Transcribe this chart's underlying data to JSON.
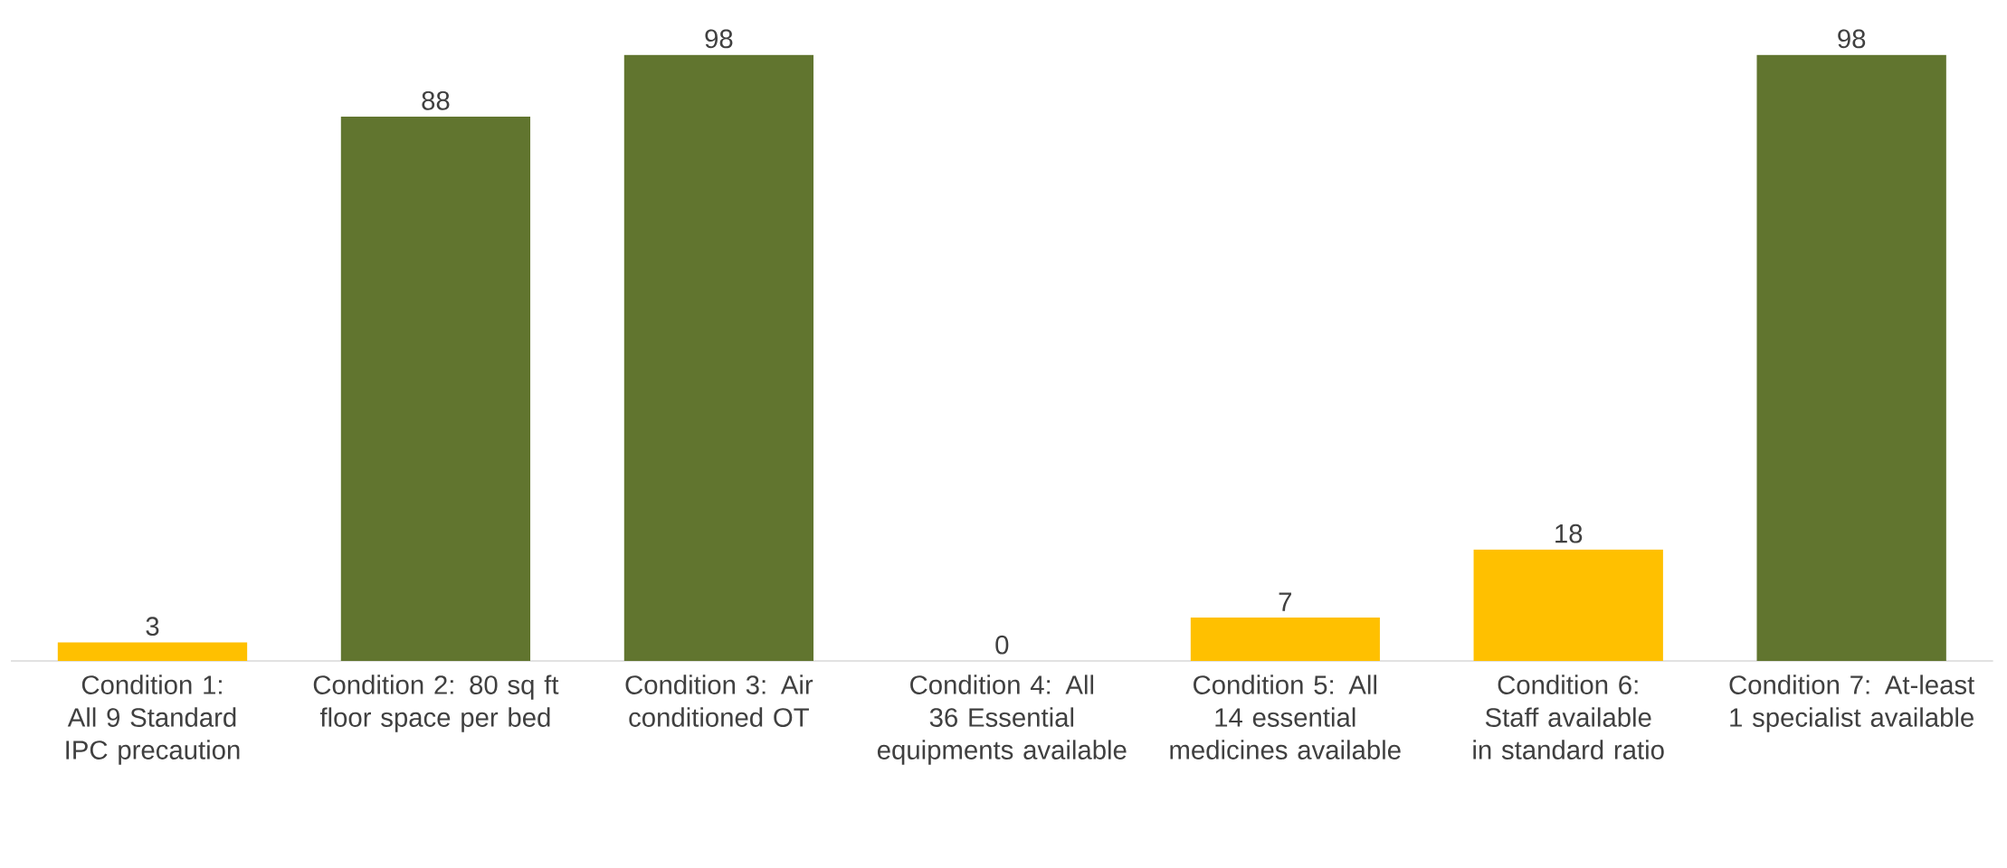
{
  "chart_data": {
    "type": "bar",
    "categories": [
      "Condition 1: All 9 Standard IPC precaution",
      "Condition 2: 80 sq ft floor space per bed",
      "Condition 3: Air conditioned OT",
      "Condition 4: All 36 Essential equipments available",
      "Condition 5: All 14 essential medicines available",
      "Condition 6: Staff available in standard ratio",
      "Condition 7: At-least 1 specialist available"
    ],
    "values": [
      3,
      88,
      98,
      0,
      7,
      18,
      98
    ],
    "colors": [
      "#ffc000",
      "#61752f",
      "#61752f",
      "#ffc000",
      "#ffc000",
      "#ffc000",
      "#61752f"
    ],
    "data_labels": true
  }
}
